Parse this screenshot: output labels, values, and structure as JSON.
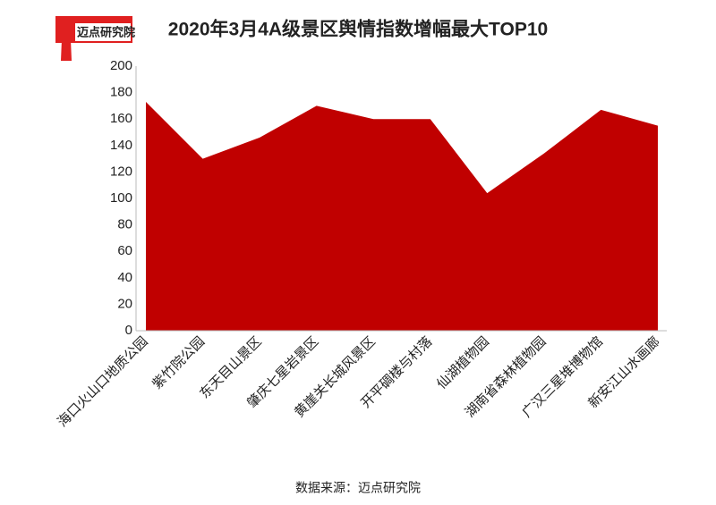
{
  "logo": "迈点研究院",
  "chart_data": {
    "type": "area",
    "title": "2020年3月4A级景区舆情指数增幅最大TOP10",
    "source": "数据来源：迈点研究院",
    "categories": [
      "海口火山口地质公园",
      "紫竹院公园",
      "东天目山景区",
      "肇庆七星岩景区",
      "黄崖关长城风景区",
      "开平碉楼与村落",
      "仙湖植物园",
      "湖南省森林植物园",
      "广汉三星堆博物馆",
      "新安江山水画廊"
    ],
    "values": [
      173,
      130,
      146,
      170,
      160,
      160,
      104,
      134,
      167,
      155
    ],
    "color": "#c00000",
    "ylim": [
      0,
      200
    ],
    "yticks": [
      0,
      20,
      40,
      60,
      80,
      100,
      120,
      140,
      160,
      180,
      200
    ]
  }
}
